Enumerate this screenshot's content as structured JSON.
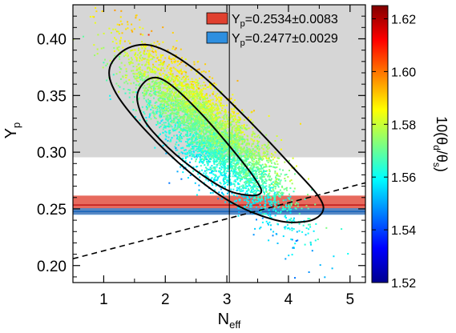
{
  "chart_data": {
    "type": "scatter",
    "title": "",
    "xlabel": "N",
    "xlabel_sub": "eff",
    "ylabel": "Y",
    "ylabel_sub": "p",
    "xlim": [
      0.5,
      5.25
    ],
    "ylim": [
      0.185,
      0.43
    ],
    "x_ticks": [
      1,
      2,
      3,
      4,
      5
    ],
    "x_tick_labels": [
      "1",
      "2",
      "3",
      "4",
      "5"
    ],
    "y_ticks": [
      0.2,
      0.25,
      0.3,
      0.35,
      0.4
    ],
    "y_tick_labels": [
      "0.20",
      "0.25",
      "0.30",
      "0.35",
      "0.40"
    ],
    "colorbar": {
      "label": "10(θ_d/θ_s)",
      "label_parts": [
        "10(θ",
        "d",
        "/θ",
        "s",
        ")"
      ],
      "range": [
        1.52,
        1.625
      ],
      "ticks": [
        1.52,
        1.54,
        1.56,
        1.58,
        1.6,
        1.62
      ],
      "tick_labels": [
        "1.52",
        "1.54",
        "1.56",
        "1.58",
        "1.60",
        "1.62"
      ],
      "colormap": "jet"
    },
    "legend": {
      "placement": "top-right",
      "entries": [
        {
          "name": "Y_p=0.2534±0.0083",
          "prefix": "Y",
          "sub": "p",
          "text": "=0.2534±0.0083",
          "color": "#e0402f"
        },
        {
          "name": "Y_p=0.2477±0.0029",
          "prefix": "Y",
          "sub": "p",
          "text": "=0.2477±0.0029",
          "color": "#2e8fe0"
        }
      ]
    },
    "shaded_region": {
      "y_from": 0.2955,
      "y_to": 0.43,
      "color": "#d6d6d6"
    },
    "bands": [
      {
        "name": "Y_p=0.2534±0.0083",
        "center": 0.2534,
        "sigma": 0.0083,
        "color": "#e0402f",
        "line_color": "#c01818"
      },
      {
        "name": "Y_p=0.2477±0.0029",
        "center": 0.2477,
        "sigma": 0.0029,
        "color": "#2e8fe0",
        "line_color": "#1060b8"
      }
    ],
    "vertical_line": {
      "x": 3.04
    },
    "dashed_line": {
      "x": [
        0.5,
        5.25
      ],
      "y": [
        0.206,
        0.273
      ]
    },
    "contours": [
      {
        "level": "68%",
        "center": [
          2.62,
          0.318
        ],
        "points": [
          [
            1.55,
            0.352
          ],
          [
            1.75,
            0.365
          ],
          [
            2.05,
            0.361
          ],
          [
            2.6,
            0.333
          ],
          [
            3.2,
            0.295
          ],
          [
            3.5,
            0.273
          ],
          [
            3.55,
            0.264
          ],
          [
            3.35,
            0.262
          ],
          [
            2.95,
            0.268
          ],
          [
            2.3,
            0.292
          ],
          [
            1.8,
            0.318
          ],
          [
            1.6,
            0.335
          ]
        ]
      },
      {
        "level": "95%",
        "center": [
          2.7,
          0.318
        ],
        "points": [
          [
            1.1,
            0.375
          ],
          [
            1.4,
            0.392
          ],
          [
            1.85,
            0.393
          ],
          [
            2.5,
            0.372
          ],
          [
            3.3,
            0.331
          ],
          [
            4.1,
            0.285
          ],
          [
            4.5,
            0.26
          ],
          [
            4.55,
            0.247
          ],
          [
            4.3,
            0.239
          ],
          [
            3.8,
            0.24
          ],
          [
            3.1,
            0.255
          ],
          [
            2.4,
            0.282
          ],
          [
            1.7,
            0.318
          ],
          [
            1.2,
            0.352
          ]
        ]
      }
    ],
    "scatter": {
      "n_points": 5000,
      "center": [
        2.7,
        0.318
      ],
      "sigma_major": 1.12,
      "sigma_minor": 0.26,
      "angle_deg": -25,
      "x_scale_units": 1.0,
      "y_scale_units": 0.108,
      "color_model": {
        "base": 1.572,
        "x_coeff": 0.012,
        "y_coeff": 0.35
      }
    }
  }
}
